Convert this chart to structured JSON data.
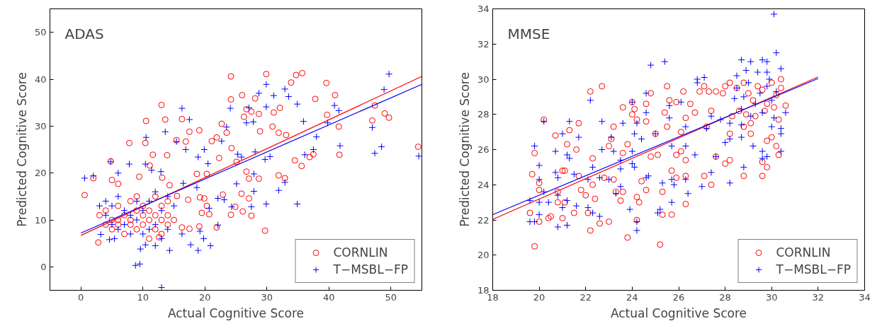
{
  "chart_data": [
    {
      "type": "scatter",
      "title": "ADAS",
      "xlabel": "Actual Cognitive Score",
      "ylabel": "Predicted Cognitive Score",
      "xlim": [
        -5,
        55
      ],
      "ylim": [
        -5,
        55
      ],
      "xticks": [
        0,
        10,
        20,
        30,
        40,
        50
      ],
      "yticks": [
        0,
        10,
        20,
        30,
        40,
        50
      ],
      "grid": false,
      "legend": "bottom right",
      "series": [
        {
          "name": "CORNLIN",
          "color": "#ff0000",
          "marker": "circle",
          "x": [
            24.2,
            29.9,
            34.7,
            35.7,
            33.9,
            39.6,
            41,
            37.8,
            28.1,
            26,
            24.2,
            13,
            10.5,
            13.6,
            16.3,
            7.8,
            10.4,
            11.6,
            13.9,
            17.5,
            19.1,
            15.4,
            16.9,
            4.8,
            2,
            0.6,
            2.8,
            29.7,
            54.4,
            47.4,
            47,
            49,
            49.7,
            41.6,
            41.7,
            39.7,
            35.6,
            34.5,
            31.9,
            32.9,
            36.9,
            37.5,
            30.9,
            31.9,
            33.1,
            32.1,
            31.1,
            28.9,
            27.5,
            26.7,
            26.3,
            28.7,
            22.7,
            23.5,
            21.9,
            21.1,
            22.3,
            24.3,
            25.1,
            26.7,
            28.7,
            27.1,
            25.9,
            27.1,
            27.5,
            26.1,
            24.9,
            24.2,
            22.9,
            20.3,
            18.7,
            19.2,
            19.9,
            20.3,
            19.5,
            20.7,
            19.1,
            21.9,
            17.5,
            16.3,
            17.3,
            15.5,
            14.3,
            13.1,
            11.1,
            9.4,
            6,
            5,
            12.6,
            4,
            5,
            6,
            7,
            8,
            9,
            10,
            11,
            12,
            13,
            14,
            6,
            8,
            10,
            12,
            14,
            5,
            7,
            9,
            11,
            13,
            3,
            4,
            6,
            8,
            10,
            12,
            14,
            15,
            9,
            11,
            13
          ],
          "values": [
            40.6,
            41.1,
            40.9,
            41.3,
            39.3,
            39.2,
            36.6,
            35.8,
            35.9,
            36.6,
            35.7,
            34.5,
            31.1,
            31.4,
            31.5,
            26.4,
            26.4,
            23.9,
            23.8,
            28.8,
            29.1,
            27,
            26.7,
            22.5,
            18.9,
            15.3,
            5.2,
            7.7,
            25.6,
            34.4,
            31.2,
            32.7,
            31.8,
            29.9,
            23.9,
            32.4,
            21.5,
            22.7,
            19.5,
            18.9,
            23.4,
            24,
            29.9,
            28.6,
            28.1,
            33.9,
            32.9,
            28.9,
            33.1,
            33.6,
            32,
            32.6,
            30.5,
            28.6,
            27.6,
            26.8,
            23.2,
            25.3,
            22.4,
            20.3,
            18.8,
            18.8,
            15.6,
            14.6,
            10.9,
            11.8,
            12.8,
            11.1,
            15.4,
            19.8,
            19.8,
            14.8,
            14.6,
            13,
            11.5,
            11.2,
            8.6,
            8.4,
            8.1,
            8.4,
            14.3,
            15.1,
            17.4,
            19,
            21.6,
            19.2,
            17.7,
            18.5,
            6.3,
            12,
            10,
            9,
            11,
            10,
            8,
            9,
            12,
            8,
            10,
            11,
            13,
            14,
            13,
            15,
            14,
            8,
            7,
            12,
            10,
            7,
            11,
            9,
            10,
            9,
            11,
            11,
            9,
            10,
            15,
            6,
            13
          ]
        },
        {
          "name": "T−MSBL−FP",
          "color": "#0000ff",
          "marker": "cross",
          "x": [
            49.7,
            48.9,
            47,
            47.4,
            48.5,
            54.5,
            41.8,
            40.9,
            41.6,
            39.8,
            38,
            37.5,
            36.1,
            34.9,
            32.9,
            31.9,
            29.9,
            32.9,
            31.1,
            33.5,
            34.9,
            35.9,
            28.7,
            29.9,
            27.1,
            24.1,
            26.7,
            27.8,
            23.5,
            22.7,
            25.3,
            25.9,
            28.1,
            29.7,
            30.5,
            27.9,
            25.1,
            27.5,
            27.9,
            29.9,
            24.3,
            23.1,
            22.1,
            20.5,
            19.9,
            18.9,
            16.9,
            16.3,
            17.5,
            13.6,
            10.5,
            15.4,
            7.8,
            10.4,
            12.9,
            11.4,
            6,
            4.8,
            2,
            0.6,
            16.5,
            18.7,
            20.7,
            22.1,
            19.2,
            16.3,
            17.7,
            20.9,
            19.8,
            18.9,
            14.3,
            12,
            10.4,
            9.6,
            8.8,
            9.5,
            13,
            5.4,
            4.6,
            3.2,
            4,
            5,
            6,
            7,
            8,
            9,
            10,
            11,
            12,
            13,
            14,
            15,
            3,
            6,
            8,
            10,
            12,
            14,
            5,
            7,
            9,
            11,
            13,
            4
          ],
          "values": [
            41.1,
            37.8,
            29.7,
            24.2,
            25.6,
            23.6,
            25.8,
            34.4,
            33.3,
            30.7,
            27.7,
            25,
            23.9,
            13.4,
            18,
            16.3,
            38.9,
            37.9,
            36.5,
            36.3,
            34.7,
            31,
            37,
            34.1,
            33.9,
            33.8,
            30.7,
            30.9,
            29.8,
            26.8,
            24,
            23.4,
            24.5,
            22.9,
            23.5,
            19.8,
            17.7,
            12.8,
            16.1,
            13.4,
            12.8,
            14.3,
            14.6,
            22,
            25,
            23.4,
            25,
            33.8,
            31.4,
            28.8,
            27.6,
            26.7,
            21.9,
            21.9,
            20.3,
            20.6,
            20,
            22.4,
            19.4,
            18.9,
            17.8,
            16.9,
            12.5,
            8.9,
            7.6,
            7,
            4.7,
            4.5,
            6,
            3.5,
            3.5,
            4.5,
            4.7,
            3.8,
            0.3,
            0.6,
            -4.4,
            6,
            5.8,
            6.9,
            11,
            13,
            8,
            12,
            11,
            10,
            7,
            14,
            9,
            12,
            8,
            13,
            13,
            15,
            7,
            12,
            16,
            15,
            9,
            9,
            14,
            8,
            6,
            14
          ]
        },
        {
          "type": "line",
          "color": "#ff0000",
          "x": [
            0,
            55
          ],
          "values": [
            6.7,
            40.6
          ]
        },
        {
          "type": "line",
          "color": "#0000ff",
          "x": [
            0,
            55
          ],
          "values": [
            7.2,
            38.9
          ]
        }
      ]
    },
    {
      "type": "scatter",
      "title": "MMSE",
      "xlabel": "Actual Cognitive Score",
      "ylabel": "Predicted Cognitive Score",
      "xlim": [
        18,
        34
      ],
      "ylim": [
        18,
        34
      ],
      "xticks": [
        18,
        20,
        22,
        24,
        26,
        28,
        30,
        32,
        34
      ],
      "yticks": [
        18,
        20,
        22,
        24,
        26,
        28,
        30,
        32,
        34
      ],
      "grid": false,
      "legend": "bottom right",
      "series": [
        {
          "name": "CORNLIN",
          "color": "#ff0000",
          "marker": "circle",
          "x": [
            19.8,
            19.6,
            19.7,
            19.8,
            20,
            20,
            20,
            20.2,
            20.4,
            20.5,
            20.7,
            20.8,
            20.8,
            21,
            21.1,
            21.2,
            21.3,
            21,
            21.1,
            21.5,
            21.6,
            21.7,
            21.8,
            21.7,
            22,
            22.1,
            22.2,
            22.2,
            22.3,
            22.3,
            22.4,
            22.6,
            22.7,
            22.8,
            23,
            23.2,
            23.1,
            23,
            23.2,
            23.3,
            23.5,
            23.6,
            23.6,
            23.6,
            23.8,
            23.8,
            24,
            24,
            24.1,
            24.2,
            24.2,
            24.2,
            24.3,
            24.4,
            24.6,
            24.6,
            24.6,
            24.8,
            24.8,
            25,
            25.2,
            25.1,
            25.3,
            25.3,
            25.4,
            25.5,
            25.5,
            25.7,
            25.7,
            25.6,
            25.9,
            25.9,
            25.9,
            26.1,
            26.1,
            26.2,
            26.3,
            26.3,
            26.3,
            26.3,
            26.5,
            26.7,
            26.9,
            27.1,
            27.1,
            27.2,
            27.4,
            27.4,
            27.3,
            27.6,
            27.6,
            28,
            28.2,
            28.2,
            28.3,
            28.8,
            29.6,
            29.8,
            29.6,
            30.6,
            30.2,
            30.3,
            30,
            29.8,
            29.1,
            29.1,
            28.8,
            28.5,
            28.8,
            29,
            29.2,
            29.4,
            29.6,
            29.8,
            30,
            30.2,
            30.4,
            28.6,
            28.9,
            29.3,
            29.7,
            30.1,
            30.3,
            28,
            28.2,
            27.9,
            30.4
          ],
          "values": [
            20.5,
            22.4,
            24.6,
            25.8,
            24.1,
            23.7,
            21.9,
            27.7,
            22.1,
            22.2,
            26.8,
            23,
            23.6,
            24.8,
            24.8,
            26.3,
            27.1,
            22.1,
            23,
            22.4,
            26,
            27.5,
            23.7,
            24.5,
            23.4,
            22.4,
            29.3,
            21.4,
            25.5,
            24,
            23.2,
            21.8,
            29.6,
            24.4,
            21.9,
            27.3,
            26.6,
            26.2,
            24.3,
            23.6,
            23.1,
            23.6,
            28.4,
            25.8,
            26.3,
            21,
            28.7,
            28,
            28.3,
            27.7,
            22,
            23.3,
            23,
            24.2,
            27.6,
            23.7,
            28.6,
            25.6,
            29.2,
            26.9,
            20.6,
            25.7,
            23.6,
            22.3,
            28.1,
            27.3,
            29.6,
            22.3,
            24.8,
            28.8,
            28.7,
            24.4,
            25.7,
            25.9,
            27,
            29.3,
            27.8,
            22.9,
            24.5,
            25.4,
            28.6,
            28.1,
            29.3,
            24.5,
            29.6,
            27.3,
            28.2,
            24,
            29.3,
            29.3,
            25.6,
            25.2,
            25.4,
            26.9,
            27.9,
            24.5,
            24.5,
            25,
            25.3,
            28.5,
            26.2,
            25.7,
            26.7,
            26.5,
            27.5,
            26.9,
            27.3,
            29.5,
            29.8,
            29.2,
            28.8,
            29.6,
            29.4,
            28.6,
            29.8,
            29.1,
            29.5,
            28.2,
            28,
            27.9,
            28.2,
            28.4,
            27.7,
            29.6,
            29.8,
            29.2,
            30
          ]
        },
        {
          "name": "T−MSBL−FP",
          "color": "#0000ff",
          "marker": "cross",
          "x": [
            30.1,
            30.2,
            25.4,
            24.8,
            28.7,
            29.1,
            29.6,
            29.8,
            30.4,
            28.9,
            29.4,
            29.8,
            28.5,
            27.1,
            26.8,
            26.8,
            24.6,
            22.2,
            24,
            26.1,
            25.6,
            24.6,
            30.6,
            25.6,
            27.4,
            27.8,
            22.7,
            23.6,
            20.2,
            21.3,
            24.2,
            26.3,
            27.2,
            28.7,
            28.2,
            30,
            30.4,
            30.4,
            24.1,
            25,
            21,
            21.7,
            28.7,
            28.2,
            28,
            23.1,
            24.4,
            22.7,
            20.7,
            21.2,
            21.3,
            23.2,
            23.5,
            24,
            25.7,
            26.3,
            26.7,
            27.6,
            29.2,
            29.6,
            29.8,
            30.4,
            19.8,
            20,
            20,
            20.7,
            20.8,
            21.5,
            22.3,
            22.1,
            22.6,
            23,
            23.5,
            24,
            24.1,
            24.6,
            24.7,
            25.3,
            25.7,
            25.8,
            26.3,
            27,
            27.4,
            28.2,
            28.8,
            29.6,
            19.6,
            20,
            20.2,
            20.4,
            20.8,
            21,
            21.2,
            21.6,
            22.1,
            22.3,
            22.6,
            23.3,
            23.5,
            23.9,
            24.2,
            24.2,
            25.1,
            25.2,
            25.7,
            26.4,
            19.6,
            19.8,
            20,
            20.8,
            21.2,
            28.5,
            28.8,
            29,
            29.3,
            29.5,
            29.8,
            30,
            30.2,
            28.7,
            29.1,
            29.6,
            30.1,
            28.4,
            29.9
          ],
          "values": [
            33.7,
            31.5,
            31,
            30.8,
            31.1,
            31,
            31.1,
            31,
            30.6,
            30.5,
            30.4,
            30.4,
            30.2,
            30.1,
            30,
            29.8,
            29.2,
            28.8,
            28.7,
            28.7,
            28.5,
            28.1,
            28.1,
            27.8,
            27.9,
            27.7,
            27.6,
            27.5,
            27.6,
            27.6,
            27.5,
            27.3,
            27.2,
            27.4,
            27.5,
            27.3,
            27.2,
            26.9,
            26.9,
            26.9,
            26.9,
            26.7,
            26.7,
            26.6,
            26.4,
            26.7,
            26.6,
            26,
            25.9,
            25.7,
            25.5,
            25.9,
            25.4,
            25.9,
            26.2,
            26.2,
            25.7,
            25.6,
            26.2,
            25.9,
            25.6,
            25.9,
            26.2,
            25.1,
            24.3,
            24.7,
            24.4,
            24.6,
            25,
            24.3,
            24.4,
            24.3,
            24.9,
            25.2,
            25,
            24.4,
            24.5,
            24.1,
            24.3,
            24,
            24.3,
            23.9,
            24.7,
            24.1,
            25,
            25.5,
            23.1,
            23,
            23.6,
            23,
            23.4,
            22.7,
            23.1,
            22.8,
            22.7,
            22.4,
            22.2,
            23.5,
            23.9,
            22.6,
            21.9,
            21.4,
            22.4,
            22.6,
            23,
            23.5,
            21.9,
            21.9,
            22.3,
            21.6,
            21.7,
            29.5,
            29,
            29.8,
            28.6,
            29.2,
            29.6,
            28.8,
            29.3,
            28.3,
            27.9,
            28.1,
            27.8,
            28.9,
            30
          ]
        },
        {
          "type": "line",
          "color": "#ff0000",
          "x": [
            18,
            32
          ],
          "values": [
            22.03,
            30.13
          ]
        },
        {
          "type": "line",
          "color": "#0000ff",
          "x": [
            18,
            32
          ],
          "values": [
            22.3,
            30.04
          ]
        }
      ]
    }
  ]
}
